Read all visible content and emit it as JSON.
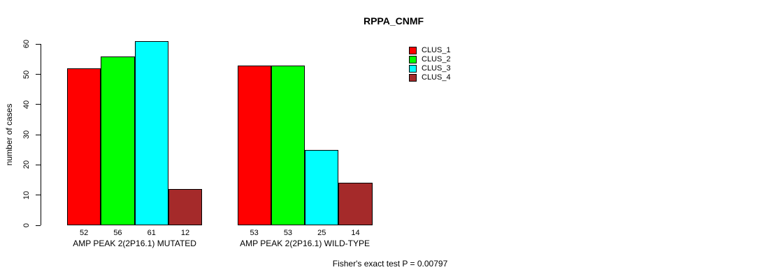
{
  "page": {
    "background": "#ffffff",
    "text_color": "#000000"
  },
  "header": {
    "title": "RPPA_CNMF"
  },
  "footer": {
    "annotation": "Fisher's exact test P = 0.00797"
  },
  "chart_data": {
    "type": "bar",
    "title": "RPPA_CNMF",
    "xlabel": "",
    "ylabel": "number of cases",
    "ylim": [
      0,
      60
    ],
    "yticks": [
      0,
      10,
      20,
      30,
      40,
      50,
      60
    ],
    "grid": false,
    "categories": [
      "AMP PEAK 2(2P16.1) MUTATED",
      "AMP PEAK 2(2P16.1) WILD-TYPE"
    ],
    "series": [
      {
        "name": "CLUS_1",
        "color": "#FF0000",
        "values": [
          52,
          53
        ]
      },
      {
        "name": "CLUS_2",
        "color": "#00FF00",
        "values": [
          56,
          53
        ]
      },
      {
        "name": "CLUS_3",
        "color": "#00FFFF",
        "values": [
          61,
          25
        ]
      },
      {
        "name": "CLUS_4",
        "color": "#A52A2A",
        "values": [
          12,
          14
        ]
      }
    ],
    "bar_value_labels": [
      [
        52,
        56,
        61,
        12
      ],
      [
        53,
        53,
        25,
        14
      ]
    ],
    "legend": {
      "position": "top-right",
      "entries": [
        {
          "label": "CLUS_1",
          "color": "#FF0000"
        },
        {
          "label": "CLUS_2",
          "color": "#00FF00"
        },
        {
          "label": "CLUS_3",
          "color": "#00FFFF"
        },
        {
          "label": "CLUS_4",
          "color": "#A52A2A"
        }
      ]
    },
    "annotation": "Fisher's exact test P = 0.00797"
  }
}
